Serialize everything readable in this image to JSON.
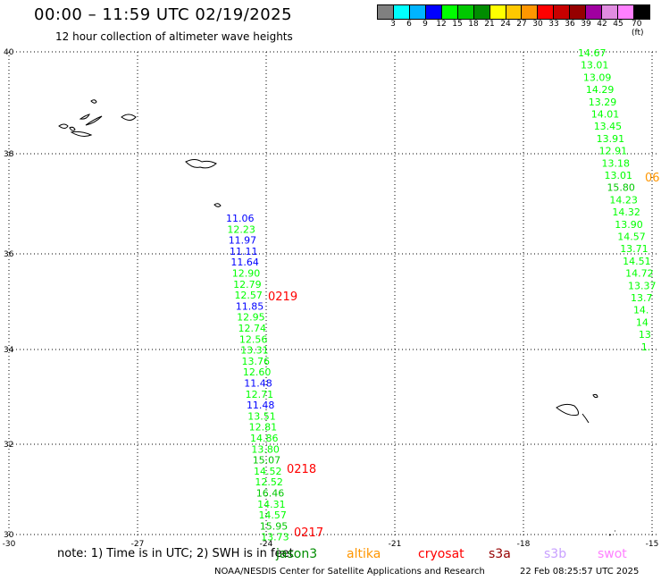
{
  "header": {
    "title": "00:00 – 11:59 UTC 02/19/2025",
    "subtitle": "12 hour collection of altimeter wave heights"
  },
  "colorbar": {
    "colors": [
      "#808080",
      "#00ffff",
      "#00b4ff",
      "#0000ff",
      "#00ff00",
      "#00c800",
      "#008c00",
      "#ffff00",
      "#ffc800",
      "#ff9600",
      "#ff0000",
      "#c80000",
      "#960000",
      "#a000a0",
      "#e08ce0",
      "#ff80ff",
      "#000000"
    ],
    "ticks": [
      "3",
      "6",
      "9",
      "12",
      "15",
      "18",
      "21",
      "24",
      "27",
      "30",
      "33",
      "36",
      "39",
      "42",
      "45",
      "70 (ft)"
    ]
  },
  "axes": {
    "lon_ticks": [
      "-30",
      "-27",
      "-24",
      "-21",
      "-18",
      "-15"
    ],
    "lat_ticks": [
      "40",
      "38",
      "36",
      "34",
      "32",
      "30"
    ]
  },
  "tracks": {
    "main": [
      {
        "v": "11.06",
        "c": "#0000ff"
      },
      {
        "v": "12.23",
        "c": "#00ff00"
      },
      {
        "v": "11.97",
        "c": "#0000ff"
      },
      {
        "v": "11.11",
        "c": "#0000ff"
      },
      {
        "v": "11.64",
        "c": "#0000ff"
      },
      {
        "v": "12.90",
        "c": "#00ff00"
      },
      {
        "v": "12.79",
        "c": "#00ff00"
      },
      {
        "v": "12.57",
        "c": "#00ff00"
      },
      {
        "v": "11.85",
        "c": "#0000ff"
      },
      {
        "v": "12.95",
        "c": "#00ff00"
      },
      {
        "v": "12.74",
        "c": "#00ff00"
      },
      {
        "v": "12.56",
        "c": "#00ff00"
      },
      {
        "v": "13.31",
        "c": "#00ff00"
      },
      {
        "v": "13.76",
        "c": "#00ff00"
      },
      {
        "v": "12.60",
        "c": "#00ff00"
      },
      {
        "v": "11.48",
        "c": "#0000ff"
      },
      {
        "v": "12.71",
        "c": "#00ff00"
      },
      {
        "v": "11.48",
        "c": "#0000ff"
      },
      {
        "v": "13.51",
        "c": "#00ff00"
      },
      {
        "v": "12.81",
        "c": "#00ff00"
      },
      {
        "v": "14.86",
        "c": "#00ff00"
      },
      {
        "v": "13.80",
        "c": "#00ff00"
      },
      {
        "v": "15.07",
        "c": "#00c800"
      },
      {
        "v": "14.52",
        "c": "#00ff00"
      },
      {
        "v": "12.52",
        "c": "#00ff00"
      },
      {
        "v": "16.46",
        "c": "#00c800"
      },
      {
        "v": "14.31",
        "c": "#00ff00"
      },
      {
        "v": "14.57",
        "c": "#00ff00"
      },
      {
        "v": "15.95",
        "c": "#00c800"
      },
      {
        "v": "13.73",
        "c": "#00ff00"
      }
    ],
    "right": [
      {
        "v": "14.67",
        "c": "#00ff00"
      },
      {
        "v": "13.01",
        "c": "#00ff00"
      },
      {
        "v": "13.09",
        "c": "#00ff00"
      },
      {
        "v": "14.29",
        "c": "#00ff00"
      },
      {
        "v": "13.29",
        "c": "#00ff00"
      },
      {
        "v": "14.01",
        "c": "#00ff00"
      },
      {
        "v": "13.45",
        "c": "#00ff00"
      },
      {
        "v": "13.91",
        "c": "#00ff00"
      },
      {
        "v": "12.91",
        "c": "#00ff00"
      },
      {
        "v": "13.18",
        "c": "#00ff00"
      },
      {
        "v": "13.01",
        "c": "#00ff00"
      },
      {
        "v": "15.80",
        "c": "#00c800"
      },
      {
        "v": "14.23",
        "c": "#00ff00"
      },
      {
        "v": "14.32",
        "c": "#00ff00"
      },
      {
        "v": "13.90",
        "c": "#00ff00"
      },
      {
        "v": "14.57",
        "c": "#00ff00"
      },
      {
        "v": "13.71",
        "c": "#00ff00"
      },
      {
        "v": "14.51",
        "c": "#00ff00"
      },
      {
        "v": "14.72",
        "c": "#00ff00"
      },
      {
        "v": "13.37",
        "c": "#00ff00"
      },
      {
        "v": "13.7",
        "c": "#00ff00"
      },
      {
        "v": "14.",
        "c": "#00ff00"
      },
      {
        "v": "14",
        "c": "#00ff00"
      },
      {
        "v": "13",
        "c": "#00ff00"
      },
      {
        "v": "1.",
        "c": "#00ff00"
      }
    ]
  },
  "time_labels": [
    {
      "text": "0219",
      "color": "#ff0000"
    },
    {
      "text": "0218",
      "color": "#ff0000"
    },
    {
      "text": "0217",
      "color": "#ff0000"
    },
    {
      "text": "06",
      "color": "#ff9600"
    }
  ],
  "footer": {
    "note": "note: 1) Time is in UTC; 2) SWH is in feet",
    "missions": [
      {
        "name": "jason3",
        "color": "#008c00"
      },
      {
        "name": "altika",
        "color": "#ff9600"
      },
      {
        "name": "cryosat",
        "color": "#ff0000"
      },
      {
        "name": "s3a",
        "color": "#960000"
      },
      {
        "name": "s3b",
        "color": "#c8a0ff"
      },
      {
        "name": "swot",
        "color": "#ff80ff"
      }
    ],
    "credit": "NOAA/NESDIS Center for Satellite Applications and Research",
    "timestamp": "22 Feb 08:25:57 UTC 2025"
  }
}
